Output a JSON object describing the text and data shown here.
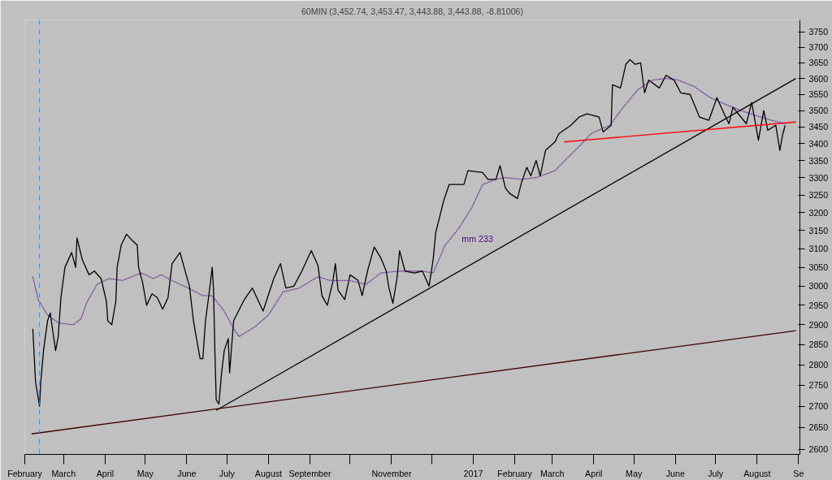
{
  "chart_data": {
    "type": "line",
    "title": "60MIN (3,452.74, 3,453.47, 3,443.88, 3,443.88, -8.81006)",
    "log": true,
    "grid": false,
    "marker": "none",
    "xlim": [
      "2016-02-01",
      "2017-09-02"
    ],
    "ylim": [
      2588,
      3790
    ],
    "xticks": [
      {
        "value": "2016-02-01",
        "label": "February"
      },
      {
        "value": "2016-03-01",
        "label": "March"
      },
      {
        "value": "2016-04-01",
        "label": "April"
      },
      {
        "value": "2016-05-01",
        "label": "May"
      },
      {
        "value": "2016-06-01",
        "label": "June"
      },
      {
        "value": "2016-07-01",
        "label": "July"
      },
      {
        "value": "2016-08-01",
        "label": "August"
      },
      {
        "value": "2016-09-01",
        "label": "September"
      },
      {
        "value": "2016-10-01",
        "label": null
      },
      {
        "value": "2016-11-01",
        "label": "November"
      },
      {
        "value": "2016-12-01",
        "label": null
      },
      {
        "value": "2017-01-01",
        "label": "2017"
      },
      {
        "value": "2017-02-01",
        "label": "February"
      },
      {
        "value": "2017-03-01",
        "label": "March"
      },
      {
        "value": "2017-04-01",
        "label": "April"
      },
      {
        "value": "2017-05-01",
        "label": "May"
      },
      {
        "value": "2017-06-01",
        "label": "June"
      },
      {
        "value": "2017-07-01",
        "label": "July"
      },
      {
        "value": "2017-08-01",
        "label": "August"
      },
      {
        "value": "2017-09-01",
        "label": "Se"
      }
    ],
    "yticks": [
      2600,
      2650,
      2700,
      2750,
      2800,
      2850,
      2900,
      2950,
      3000,
      3050,
      3100,
      3150,
      3200,
      3250,
      3300,
      3350,
      3400,
      3450,
      3500,
      3550,
      3600,
      3650,
      3700,
      3750
    ],
    "ref_lines": [
      {
        "axis": "x",
        "value": "2016-02-12",
        "label": null,
        "color": "#1e90ff",
        "line_style": "dashed"
      }
    ],
    "series": [
      {
        "color": "#000000",
        "line_style": "solid",
        "x": [
          "2016-02-07",
          "2016-02-09",
          "2016-02-12",
          "2016-02-13",
          "2016-02-15",
          "2016-02-18",
          "2016-02-20",
          "2016-02-24",
          "2016-02-26",
          "2016-02-28",
          "2016-03-02",
          "2016-03-07",
          "2016-03-10",
          "2016-03-11",
          "2016-03-15",
          "2016-03-20",
          "2016-03-24",
          "2016-03-29",
          "2016-04-02",
          "2016-04-03",
          "2016-04-06",
          "2016-04-09",
          "2016-04-10",
          "2016-04-13",
          "2016-04-17",
          "2016-04-22",
          "2016-04-25",
          "2016-04-26",
          "2016-04-29",
          "2016-05-02",
          "2016-05-06",
          "2016-05-10",
          "2016-05-14",
          "2016-05-18",
          "2016-05-21",
          "2016-05-27",
          "2016-05-30",
          "2016-06-03",
          "2016-06-06",
          "2016-06-08",
          "2016-06-11",
          "2016-06-13",
          "2016-06-15",
          "2016-06-18",
          "2016-06-20",
          "2016-06-21",
          "2016-06-22",
          "2016-06-23",
          "2016-06-25",
          "2016-06-27",
          "2016-06-29",
          "2016-07-02",
          "2016-07-03",
          "2016-07-06",
          "2016-07-14",
          "2016-07-20",
          "2016-07-28",
          "2016-08-05",
          "2016-08-10",
          "2016-08-14",
          "2016-08-20",
          "2016-08-26",
          "2016-09-02",
          "2016-09-07",
          "2016-09-10",
          "2016-09-14",
          "2016-09-18",
          "2016-09-20",
          "2016-09-22",
          "2016-09-27",
          "2016-10-01",
          "2016-10-07",
          "2016-10-10",
          "2016-10-14",
          "2016-10-19",
          "2016-10-24",
          "2016-10-28",
          "2016-10-30",
          "2016-11-02",
          "2016-11-05",
          "2016-11-07",
          "2016-11-11",
          "2016-11-18",
          "2016-11-24",
          "2016-11-29",
          "2016-12-02",
          "2016-12-04",
          "2016-12-10",
          "2016-12-14",
          "2016-12-25",
          "2016-12-28",
          "2017-01-08",
          "2017-01-12",
          "2017-01-18",
          "2017-01-21",
          "2017-01-25",
          "2017-01-28",
          "2017-02-03",
          "2017-02-06",
          "2017-02-10",
          "2017-02-13",
          "2017-02-17",
          "2017-02-20",
          "2017-02-24",
          "2017-03-03",
          "2017-03-06",
          "2017-03-15",
          "2017-03-21",
          "2017-03-27",
          "2017-04-05",
          "2017-04-08",
          "2017-04-14",
          "2017-04-15",
          "2017-04-21",
          "2017-04-25",
          "2017-04-28",
          "2017-05-02",
          "2017-05-06",
          "2017-05-09",
          "2017-05-12",
          "2017-05-20",
          "2017-05-25",
          "2017-05-31",
          "2017-06-05",
          "2017-06-12",
          "2017-06-19",
          "2017-06-26",
          "2017-07-02",
          "2017-07-08",
          "2017-07-11",
          "2017-07-14",
          "2017-07-24",
          "2017-07-28",
          "2017-08-02",
          "2017-08-06",
          "2017-08-09",
          "2017-08-15",
          "2017-08-18",
          "2017-08-20",
          "2017-08-22"
        ],
        "values": [
          2890,
          2760,
          2700,
          2760,
          2835,
          2910,
          2930,
          2835,
          2870,
          2970,
          3050,
          3090,
          3050,
          3130,
          3070,
          3030,
          3040,
          3020,
          2960,
          2910,
          2900,
          2960,
          3050,
          3110,
          3140,
          3120,
          3110,
          3050,
          3010,
          2950,
          2980,
          2970,
          2940,
          2970,
          3060,
          3090,
          3050,
          3000,
          2910,
          2870,
          2815,
          2815,
          2910,
          2990,
          3050,
          2990,
          2835,
          2715,
          2705,
          2780,
          2835,
          2865,
          2780,
          2910,
          2965,
          2995,
          2935,
          3020,
          3060,
          2995,
          3000,
          3040,
          3095,
          3055,
          2975,
          2950,
          3010,
          3060,
          2990,
          2965,
          3030,
          3015,
          2975,
          3040,
          3105,
          3075,
          3040,
          2995,
          2955,
          3020,
          3095,
          3040,
          3035,
          3040,
          3000,
          3070,
          3145,
          3235,
          3280,
          3280,
          3320,
          3315,
          3295,
          3295,
          3335,
          3270,
          3255,
          3240,
          3285,
          3330,
          3305,
          3350,
          3305,
          3380,
          3405,
          3430,
          3455,
          3480,
          3490,
          3480,
          3435,
          3455,
          3580,
          3570,
          3645,
          3660,
          3645,
          3650,
          3555,
          3595,
          3570,
          3610,
          3595,
          3555,
          3550,
          3480,
          3470,
          3540,
          3485,
          3460,
          3510,
          3460,
          3525,
          3410,
          3500,
          3440,
          3455,
          3380,
          3425,
          3455
        ]
      },
      {
        "name": "mm 233",
        "color": "#4b0082",
        "line_style": "dotted",
        "x": [
          "2016-02-07",
          "2016-02-11",
          "2016-02-18",
          "2016-02-26",
          "2016-03-08",
          "2016-03-14",
          "2016-03-18",
          "2016-03-26",
          "2016-04-04",
          "2016-04-14",
          "2016-04-28",
          "2016-05-07",
          "2016-05-13",
          "2016-05-21",
          "2016-06-02",
          "2016-06-13",
          "2016-06-20",
          "2016-06-29",
          "2016-07-06",
          "2016-07-10",
          "2016-07-22",
          "2016-08-01",
          "2016-08-12",
          "2016-08-24",
          "2016-09-07",
          "2016-09-16",
          "2016-09-30",
          "2016-10-13",
          "2016-10-24",
          "2016-11-07",
          "2016-11-24",
          "2016-12-02",
          "2016-12-11",
          "2016-12-21",
          "2016-12-31",
          "2017-01-08",
          "2017-01-18",
          "2017-01-25",
          "2017-02-06",
          "2017-02-17",
          "2017-03-03",
          "2017-03-13",
          "2017-03-22",
          "2017-03-30",
          "2017-04-13",
          "2017-04-23",
          "2017-05-04",
          "2017-05-15",
          "2017-05-25",
          "2017-06-03",
          "2017-06-15",
          "2017-06-27",
          "2017-07-08",
          "2017-07-20",
          "2017-07-31",
          "2017-08-12",
          "2017-08-22"
        ],
        "values": [
          3025,
          2965,
          2925,
          2905,
          2900,
          2915,
          2955,
          3005,
          3020,
          3015,
          3035,
          3020,
          3030,
          3015,
          2995,
          2975,
          2975,
          2935,
          2890,
          2870,
          2895,
          2925,
          2985,
          2995,
          3025,
          3015,
          3015,
          3005,
          3035,
          3040,
          3040,
          3035,
          3110,
          3155,
          3215,
          3280,
          3295,
          3300,
          3295,
          3300,
          3320,
          3360,
          3395,
          3430,
          3455,
          3510,
          3565,
          3595,
          3600,
          3595,
          3575,
          3540,
          3520,
          3500,
          3485,
          3470,
          3460
        ]
      },
      {
        "color": "#000000",
        "line_style": "solid",
        "x": [
          "2016-06-23",
          "2017-08-30"
        ],
        "values": [
          2690,
          3600
        ]
      },
      {
        "color": "#400000",
        "line_style": "solid",
        "x": [
          "2016-02-06",
          "2017-08-30"
        ],
        "values": [
          2635,
          2885
        ]
      },
      {
        "color": "#ff0000",
        "line_style": "solid",
        "x": [
          "2017-03-10",
          "2017-08-30"
        ],
        "values": [
          3405,
          3465
        ]
      }
    ]
  }
}
